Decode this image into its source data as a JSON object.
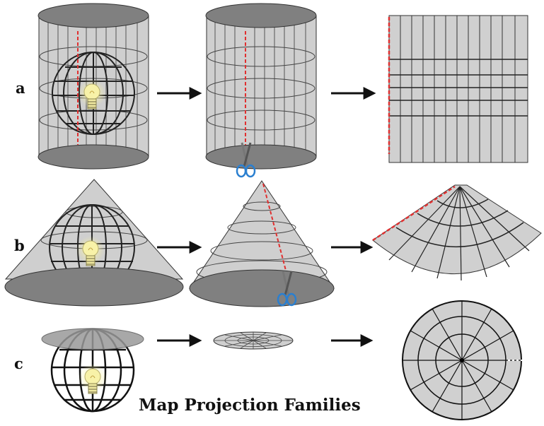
{
  "title": "Map Projection Families",
  "rows": [
    {
      "label": "a"
    },
    {
      "label": "b"
    },
    {
      "label": "c"
    }
  ],
  "colors": {
    "surface": "#cfcfcf",
    "cap": "#808080",
    "line": "#222222",
    "cut": "#e03030",
    "bulb": "#f5f0a0",
    "scissors": "#2a7fd0"
  }
}
